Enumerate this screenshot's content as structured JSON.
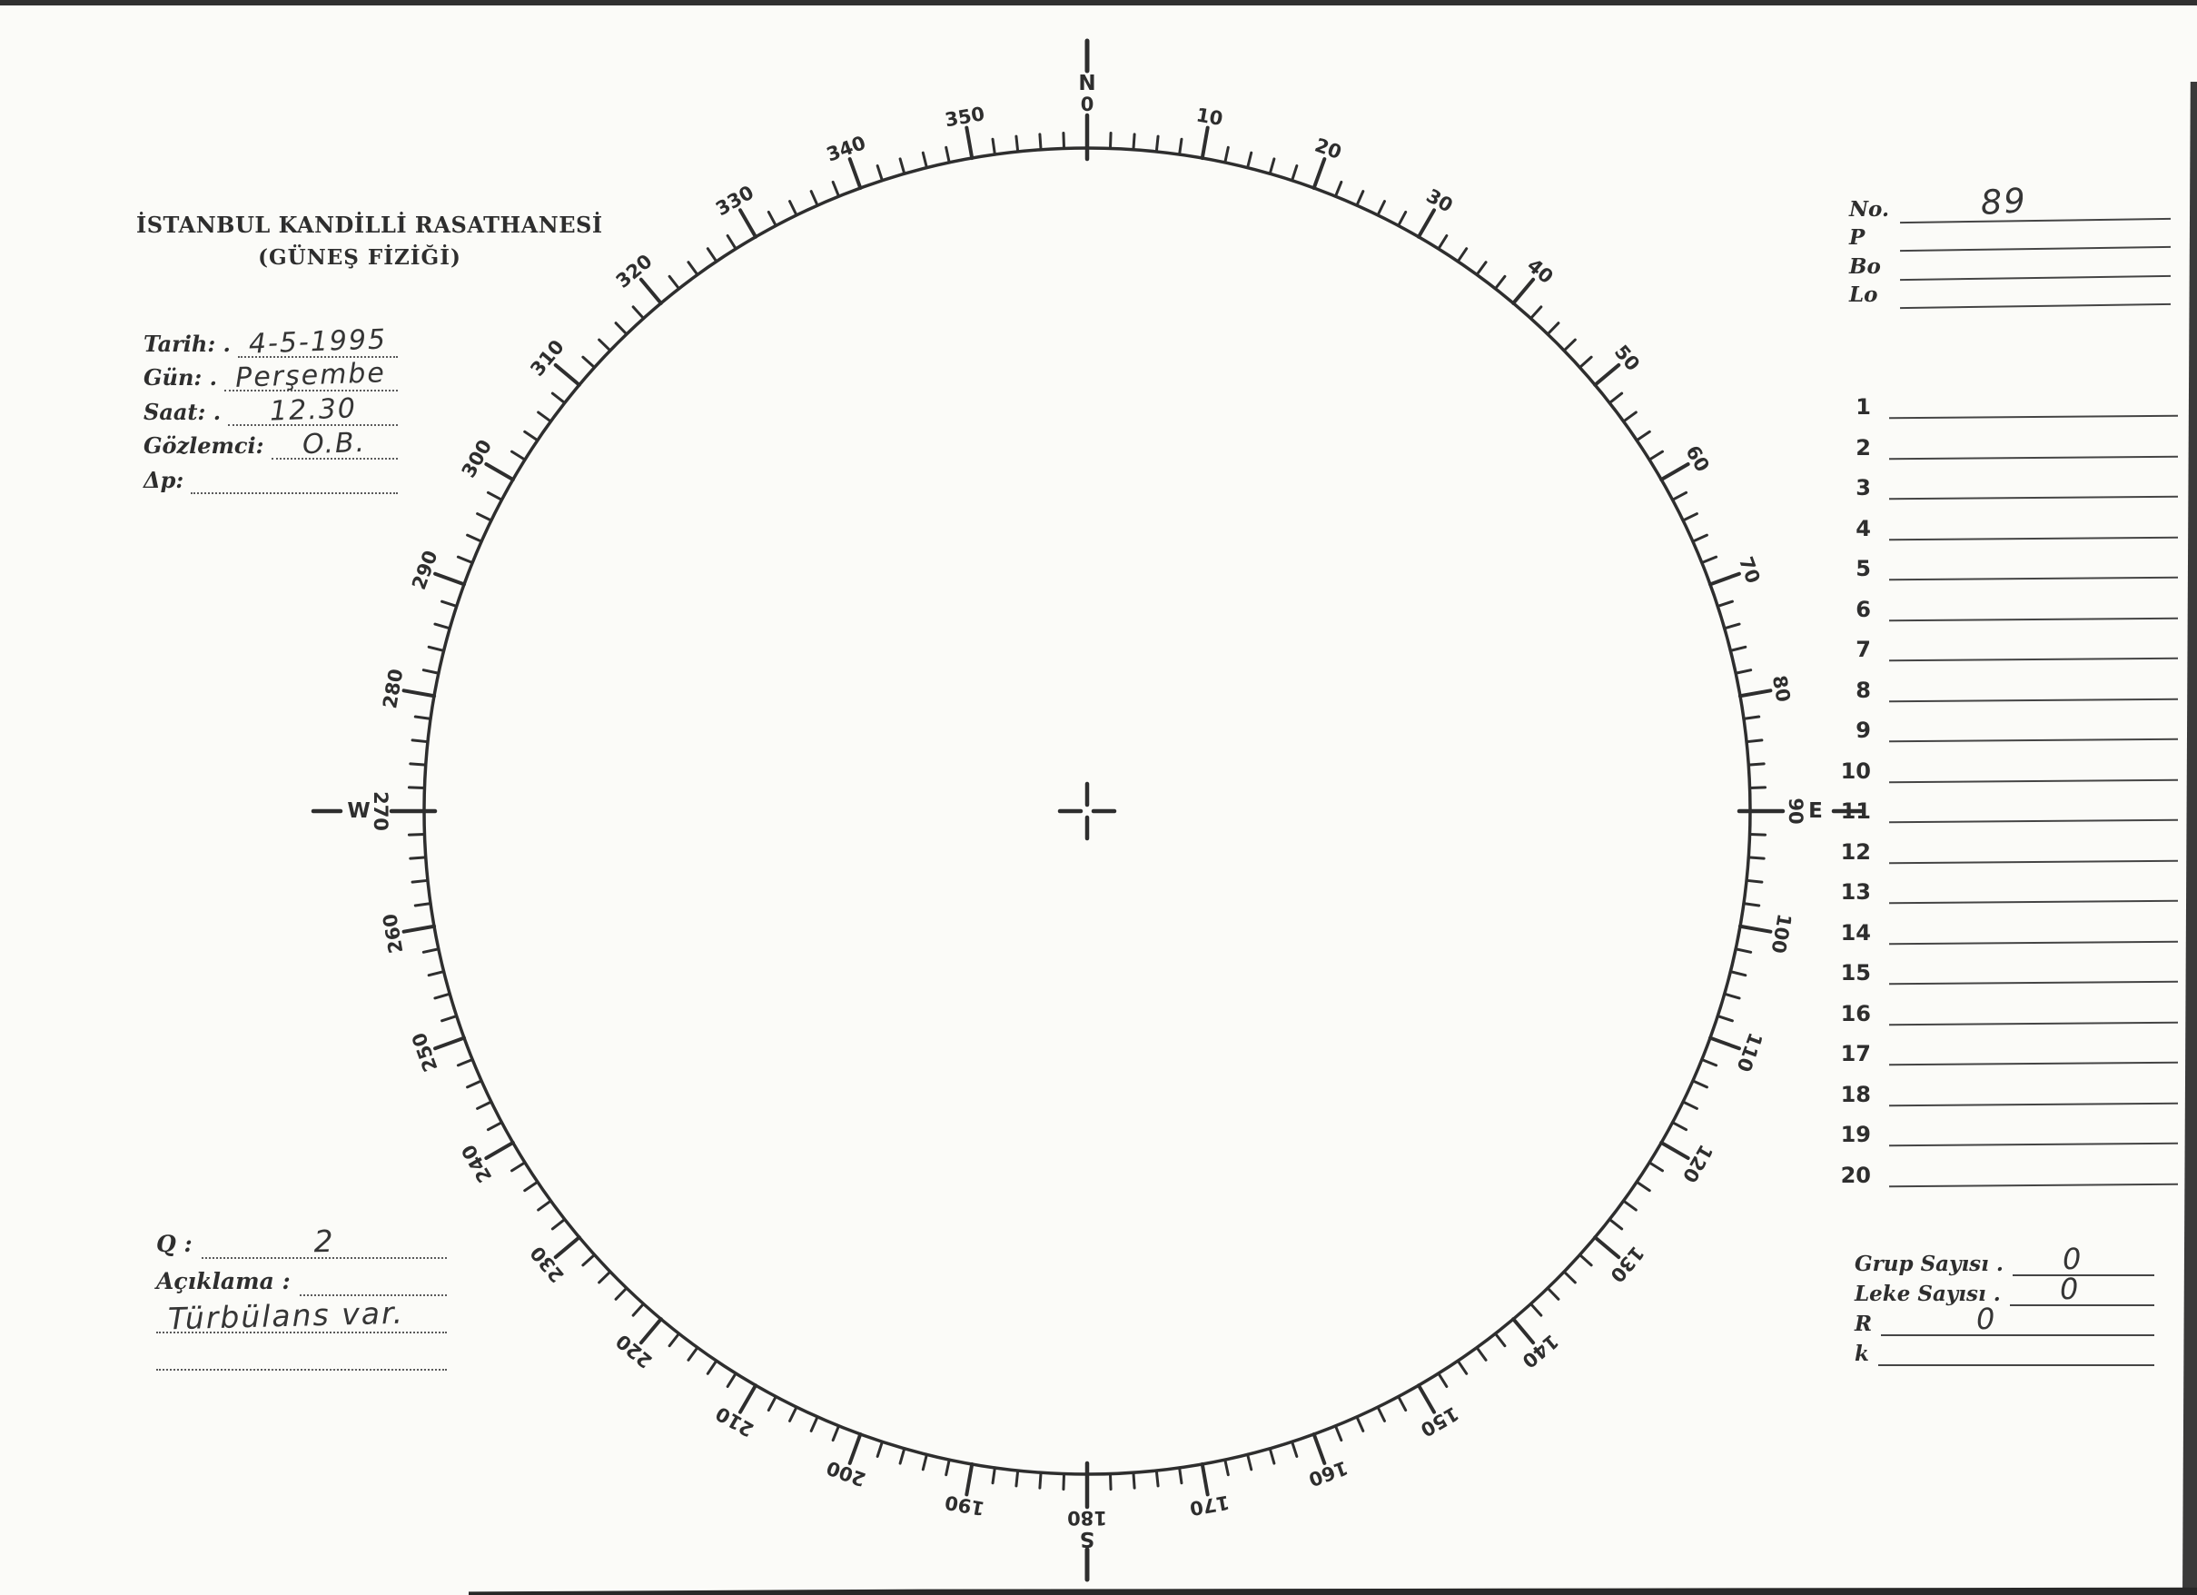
{
  "header": {
    "title": "İSTANBUL KANDİLLİ RASATHANESİ",
    "subtitle": "(GÜNEŞ FİZİĞİ)"
  },
  "observation_fields": [
    {
      "label": "Tarih: .",
      "value": "4-5-1995"
    },
    {
      "label": "Gün: .",
      "value": "Perşembe"
    },
    {
      "label": "Saat: .",
      "value": "12.30"
    },
    {
      "label": "Gözlemci:",
      "value": "O.B."
    },
    {
      "label": "Δp:",
      "value": ""
    }
  ],
  "id_fields": [
    {
      "label": "No.",
      "value": "89"
    },
    {
      "label": "P",
      "value": ""
    },
    {
      "label": "Bo",
      "value": ""
    },
    {
      "label": "Lo",
      "value": ""
    }
  ],
  "spot_list": {
    "numbers": [
      "1",
      "2",
      "3",
      "4",
      "5",
      "6",
      "7",
      "8",
      "9",
      "10",
      "11",
      "12",
      "13",
      "14",
      "15",
      "16",
      "17",
      "18",
      "19",
      "20"
    ]
  },
  "summary_fields": [
    {
      "label": "Grup Sayısı .",
      "value": "0"
    },
    {
      "label": "Leke Sayısı .",
      "value": "0"
    },
    {
      "label": "R",
      "value": "0"
    },
    {
      "label": "k",
      "value": ""
    }
  ],
  "quality_fields": {
    "q_label": "Q :",
    "q_value": "2",
    "aciklama_label": "Açıklama :",
    "aciklama_value": "",
    "note": "Türbülans var."
  },
  "compass": {
    "tick_step_deg": 2,
    "label_step_deg": 10,
    "degree_labels": [
      "10",
      "20",
      "30",
      "40",
      "50",
      "60",
      "70",
      "80",
      "100",
      "110",
      "120",
      "130",
      "140",
      "150",
      "160",
      "170",
      "190",
      "200",
      "210",
      "220",
      "230",
      "240",
      "250",
      "260",
      "280",
      "290",
      "300",
      "310",
      "320",
      "330",
      "340",
      "350"
    ],
    "cardinals": [
      {
        "deg": 0,
        "letter": "N",
        "number": "0"
      },
      {
        "deg": 90,
        "letter": "E",
        "number": "90"
      },
      {
        "deg": 180,
        "letter": "S",
        "number": "180"
      },
      {
        "deg": 270,
        "letter": "W",
        "number": "270"
      }
    ]
  },
  "colors": {
    "ink": "#2e2e2e",
    "rule_line": "#454545",
    "handwriting": "#353535",
    "paper": "#fbfbf8",
    "scan_edge": "#303030"
  }
}
